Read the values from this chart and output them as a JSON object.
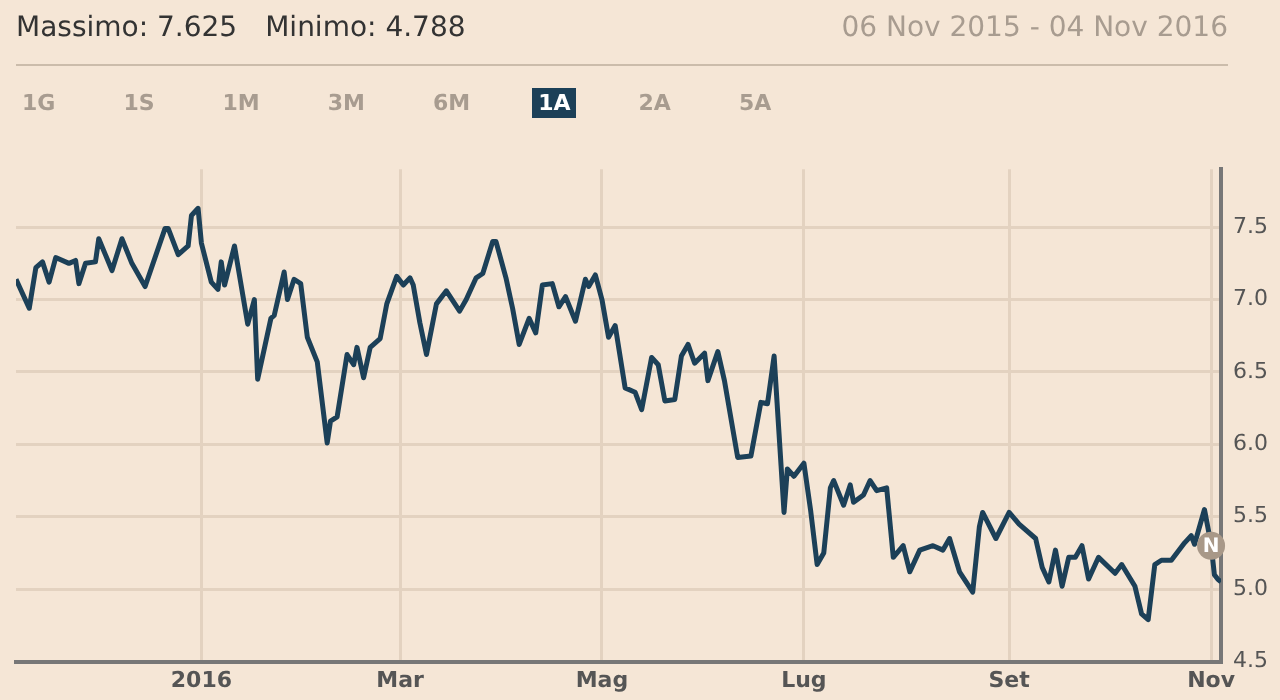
{
  "chart_data": {
    "type": "line",
    "title": "Massimo: 7.625",
    "subtitle": "Minimo: 4.788",
    "annotations": [
      "06 Nov 2015 - 04 Nov 2016",
      "1G",
      "1S",
      "1M",
      "3M",
      "6M",
      "1A",
      "2A",
      "5A",
      {
        "text": "N",
        "x": "2016-11-01",
        "y": 5.3
      }
    ],
    "series": [
      {
        "color": "#1c4058",
        "x": [
          "2015-11-06",
          "2015-11-10",
          "2015-11-12",
          "2015-11-14",
          "2015-11-16",
          "2015-11-18",
          "2015-11-22",
          "2015-11-24",
          "2015-11-25",
          "2015-11-27",
          "2015-11-30",
          "2015-12-01",
          "2015-12-03",
          "2015-12-05",
          "2015-12-08",
          "2015-12-11",
          "2015-12-15",
          "2015-12-21",
          "2015-12-22",
          "2015-12-25",
          "2015-12-28",
          "2015-12-29",
          "2015-12-31",
          "2016-01-01",
          "2016-01-04",
          "2016-01-06",
          "2016-01-07",
          "2016-01-08",
          "2016-01-11",
          "2016-01-15",
          "2016-01-17",
          "2016-01-18",
          "2016-01-22",
          "2016-01-23",
          "2016-01-26",
          "2016-01-27",
          "2016-01-29",
          "2016-01-31",
          "2016-02-02",
          "2016-02-05",
          "2016-02-08",
          "2016-02-09",
          "2016-02-11",
          "2016-02-14",
          "2016-02-16",
          "2016-02-17",
          "2016-02-19",
          "2016-02-21",
          "2016-02-24",
          "2016-02-26",
          "2016-02-29",
          "2016-03-02",
          "2016-03-04",
          "2016-03-05",
          "2016-03-07",
          "2016-03-09",
          "2016-03-12",
          "2016-03-15",
          "2016-03-19",
          "2016-03-21",
          "2016-03-24",
          "2016-03-26",
          "2016-03-29",
          "2016-03-30",
          "2016-04-02",
          "2016-04-04",
          "2016-04-06",
          "2016-04-09",
          "2016-04-11",
          "2016-04-13",
          "2016-04-16",
          "2016-04-18",
          "2016-04-20",
          "2016-04-23",
          "2016-04-26",
          "2016-04-27",
          "2016-04-29",
          "2016-05-01",
          "2016-05-03",
          "2016-05-05",
          "2016-05-08",
          "2016-05-11",
          "2016-05-13",
          "2016-05-16",
          "2016-05-18",
          "2016-05-20",
          "2016-05-23",
          "2016-05-25",
          "2016-05-27",
          "2016-05-29",
          "2016-06-01",
          "2016-06-02",
          "2016-06-05",
          "2016-06-07",
          "2016-06-11",
          "2016-06-15",
          "2016-06-18",
          "2016-06-20",
          "2016-06-22",
          "2016-06-25",
          "2016-06-26",
          "2016-06-28",
          "2016-07-01",
          "2016-07-03",
          "2016-07-05",
          "2016-07-07",
          "2016-07-09",
          "2016-07-10",
          "2016-07-13",
          "2016-07-15",
          "2016-07-16",
          "2016-07-19",
          "2016-07-21",
          "2016-07-23",
          "2016-07-26",
          "2016-07-28",
          "2016-07-31",
          "2016-08-02",
          "2016-08-05",
          "2016-08-09",
          "2016-08-12",
          "2016-08-14",
          "2016-08-17",
          "2016-08-21",
          "2016-08-23",
          "2016-08-24",
          "2016-08-28",
          "2016-09-01",
          "2016-09-04",
          "2016-09-09",
          "2016-09-11",
          "2016-09-13",
          "2016-09-15",
          "2016-09-17",
          "2016-09-19",
          "2016-09-21",
          "2016-09-23",
          "2016-09-25",
          "2016-09-28",
          "2016-10-03",
          "2016-10-05",
          "2016-10-09",
          "2016-10-11",
          "2016-10-13",
          "2016-10-15",
          "2016-10-17",
          "2016-10-20",
          "2016-10-24",
          "2016-10-26",
          "2016-10-27",
          "2016-10-30",
          "2016-11-01",
          "2016-11-02",
          "2016-11-03",
          "2016-11-04"
        ],
        "values": [
          7.14,
          6.94,
          7.22,
          7.26,
          7.12,
          7.29,
          7.25,
          7.27,
          7.11,
          7.25,
          7.26,
          7.42,
          7.31,
          7.2,
          7.42,
          7.25,
          7.09,
          7.49,
          7.49,
          7.31,
          7.37,
          7.58,
          7.63,
          7.39,
          7.12,
          7.07,
          7.26,
          7.1,
          7.37,
          6.83,
          7.0,
          6.45,
          6.87,
          6.89,
          7.19,
          7.0,
          7.14,
          7.11,
          6.74,
          6.57,
          6.01,
          6.16,
          6.19,
          6.62,
          6.55,
          6.67,
          6.46,
          6.67,
          6.73,
          6.97,
          7.16,
          7.1,
          7.15,
          7.1,
          6.84,
          6.62,
          6.97,
          7.06,
          6.92,
          7.0,
          7.15,
          7.18,
          7.4,
          7.4,
          7.15,
          6.94,
          6.69,
          6.87,
          6.77,
          7.1,
          7.11,
          6.95,
          7.02,
          6.85,
          7.14,
          7.09,
          7.17,
          7.0,
          6.74,
          6.82,
          6.39,
          6.36,
          6.24,
          6.6,
          6.55,
          6.3,
          6.31,
          6.61,
          6.69,
          6.56,
          6.63,
          6.44,
          6.64,
          6.44,
          5.91,
          5.92,
          6.29,
          6.28,
          6.61,
          5.53,
          5.83,
          5.78,
          5.87,
          5.55,
          5.17,
          5.25,
          5.7,
          5.75,
          5.58,
          5.72,
          5.6,
          5.65,
          5.75,
          5.68,
          5.7,
          5.22,
          5.3,
          5.12,
          5.27,
          5.3,
          5.27,
          5.35,
          5.12,
          4.98,
          5.43,
          5.53,
          5.35,
          5.53,
          5.45,
          5.35,
          5.15,
          5.05,
          5.27,
          5.02,
          5.22,
          5.22,
          5.3,
          5.07,
          5.22,
          5.11,
          5.17,
          5.02,
          4.83,
          4.79,
          5.17,
          5.2,
          5.2,
          5.32,
          5.37,
          5.31,
          5.55,
          5.31,
          5.1,
          5.07,
          5.05
        ]
      }
    ],
    "xlim": [
      "2015-11-06",
      "2016-11-04"
    ],
    "xticks": [
      {
        "value": "2016-01-01",
        "label": "2016"
      },
      {
        "value": "2016-03-01",
        "label": "Mar"
      },
      {
        "value": "2016-05-01",
        "label": "Mag"
      },
      {
        "value": "2016-07-01",
        "label": "Lug"
      },
      {
        "value": "2016-09-01",
        "label": "Set"
      },
      {
        "value": "2016-11-01",
        "label": "Nov"
      }
    ],
    "ylim": [
      4.5,
      7.9
    ],
    "yticks": [
      4.5,
      {
        "value": 5,
        "label": "5.0"
      },
      5.5,
      {
        "value": 6,
        "label": "6.0"
      },
      6.5,
      {
        "value": 7,
        "label": "7.0"
      },
      7.5
    ],
    "grid": true,
    "legend": false,
    "marker": "none",
    "line_style": "solid"
  }
}
